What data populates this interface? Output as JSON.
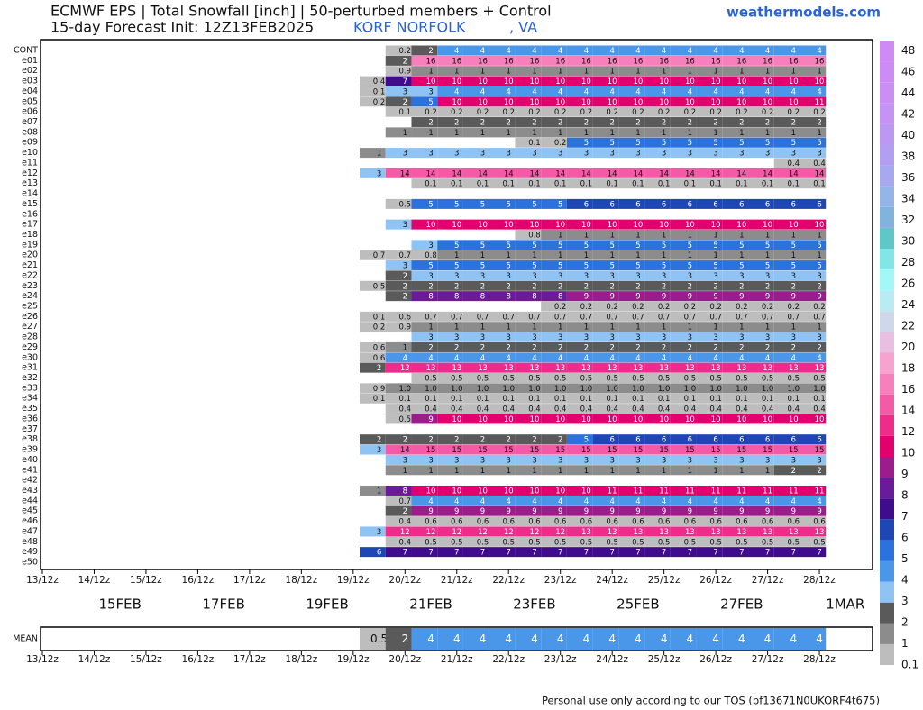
{
  "chart_data": {
    "type": "heatmap",
    "title": "ECMWF EPS | Total Snowfall [inch] | 50-perturbed members + Control",
    "subtitle": "15-day Forecast Init: 12Z13FEB2025",
    "location": "KORF NORFOLK",
    "state": ", VA",
    "site": "weathermodels.com",
    "footer": "Personal use only according to our TOS (pf13671N0UKORF4t675)",
    "xtick_labels": [
      "13/12z",
      "14/12z",
      "15/12z",
      "16/12z",
      "17/12z",
      "18/12z",
      "19/12z",
      "20/12z",
      "21/12z",
      "22/12z",
      "23/12z",
      "24/12z",
      "25/12z",
      "26/12z",
      "27/12z",
      "28/12z"
    ],
    "date_labels": [
      "15FEB",
      "17FEB",
      "19FEB",
      "21FEB",
      "23FEB",
      "25FEB",
      "27FEB",
      "1MAR"
    ],
    "colorbar": {
      "levels": [
        0.1,
        1,
        2,
        3,
        4,
        5,
        6,
        7,
        8,
        9,
        10,
        12,
        14,
        16,
        18,
        20,
        22,
        24,
        26,
        28,
        30,
        32,
        34,
        36,
        38,
        40,
        42,
        44,
        46,
        48
      ],
      "colors": [
        "#bdbdbd",
        "#8c8c8c",
        "#5a5a5a",
        "#8ec3f3",
        "#4a97ea",
        "#2c72dc",
        "#1e46b4",
        "#3f0c8e",
        "#6a1b9a",
        "#9c1c8c",
        "#e2006e",
        "#ee2d8a",
        "#f45aa5",
        "#f77fbb",
        "#f6a3cf",
        "#e8bfe1",
        "#cfd7ea",
        "#b9ecf2",
        "#a3f7f7",
        "#82e6e6",
        "#5fc7c7",
        "#7fb5dc",
        "#95b5e8",
        "#a7a8ef",
        "#b29ff2",
        "#bc98f2",
        "#c493f3",
        "#c98ff3",
        "#cd8cf3",
        "#d08af3"
      ]
    },
    "rows": [
      {
        "name": "CONT",
        "values": [
          null,
          0.2,
          2,
          4,
          4,
          4,
          4,
          4,
          4,
          4,
          4,
          4,
          4,
          4,
          4,
          4,
          4,
          4
        ]
      },
      {
        "name": "e01",
        "values": [
          null,
          2,
          16,
          16,
          16,
          16,
          16,
          16,
          16,
          16,
          16,
          16,
          16,
          16,
          16,
          16,
          16,
          16
        ]
      },
      {
        "name": "e02",
        "values": [
          null,
          0.9,
          1,
          1,
          1,
          1,
          1,
          1,
          1,
          1,
          1,
          1,
          1,
          1,
          1,
          1,
          1,
          1
        ]
      },
      {
        "name": "e03",
        "values": [
          0.4,
          7,
          10,
          10,
          10,
          10,
          10,
          10,
          10,
          10,
          10,
          10,
          10,
          10,
          10,
          10,
          10,
          10
        ]
      },
      {
        "name": "e04",
        "values": [
          0.1,
          3,
          3,
          4,
          4,
          4,
          4,
          4,
          4,
          4,
          4,
          4,
          4,
          4,
          4,
          4,
          4,
          4
        ]
      },
      {
        "name": "e05",
        "values": [
          0.2,
          2,
          5,
          10,
          10,
          10,
          10,
          10,
          10,
          10,
          10,
          10,
          10,
          10,
          10,
          10,
          10,
          11
        ]
      },
      {
        "name": "e06",
        "values": [
          null,
          0.1,
          0.2,
          0.2,
          0.2,
          0.2,
          0.2,
          0.2,
          0.2,
          0.2,
          0.2,
          0.2,
          0.2,
          0.2,
          0.2,
          0.2,
          0.2,
          0.2
        ]
      },
      {
        "name": "e07",
        "values": [
          null,
          null,
          2,
          2,
          2,
          2,
          2,
          2,
          2,
          2,
          2,
          2,
          2,
          2,
          2,
          2,
          2,
          2
        ]
      },
      {
        "name": "e08",
        "values": [
          null,
          1,
          1,
          1,
          1,
          1,
          1,
          1,
          1,
          1,
          1,
          1,
          1,
          1,
          1,
          1,
          1,
          1
        ]
      },
      {
        "name": "e09",
        "values": [
          null,
          null,
          null,
          null,
          null,
          null,
          0.1,
          0.2,
          5,
          5,
          5,
          5,
          5,
          5,
          5,
          5,
          5,
          5
        ]
      },
      {
        "name": "e10",
        "values": [
          1,
          3,
          3,
          3,
          3,
          3,
          3,
          3,
          3,
          3,
          3,
          3,
          3,
          3,
          3,
          3,
          3,
          3
        ]
      },
      {
        "name": "e11",
        "values": [
          null,
          null,
          null,
          null,
          null,
          null,
          null,
          null,
          null,
          null,
          null,
          null,
          null,
          null,
          null,
          null,
          0.4,
          0.4
        ]
      },
      {
        "name": "e12",
        "values": [
          3,
          14,
          14,
          14,
          14,
          14,
          14,
          14,
          14,
          14,
          14,
          14,
          14,
          14,
          14,
          14,
          14,
          14
        ]
      },
      {
        "name": "e13",
        "values": [
          null,
          null,
          0.1,
          0.1,
          0.1,
          0.1,
          0.1,
          0.1,
          0.1,
          0.1,
          0.1,
          0.1,
          0.1,
          0.1,
          0.1,
          0.1,
          0.1,
          0.1
        ]
      },
      {
        "name": "e14",
        "values": [
          null,
          null,
          null,
          null,
          null,
          null,
          null,
          null,
          null,
          null,
          null,
          null,
          null,
          null,
          null,
          null,
          null,
          null
        ]
      },
      {
        "name": "e15",
        "values": [
          null,
          0.5,
          5,
          5,
          5,
          5,
          5,
          5,
          6,
          6,
          6,
          6,
          6,
          6,
          6,
          6,
          6,
          6
        ]
      },
      {
        "name": "e16",
        "values": [
          null,
          null,
          null,
          null,
          null,
          null,
          null,
          null,
          null,
          null,
          null,
          null,
          null,
          null,
          null,
          null,
          null,
          null
        ]
      },
      {
        "name": "e17",
        "values": [
          null,
          3,
          10,
          10,
          10,
          10,
          10,
          10,
          10,
          10,
          10,
          10,
          10,
          10,
          10,
          10,
          10,
          10
        ]
      },
      {
        "name": "e18",
        "values": [
          null,
          null,
          null,
          null,
          null,
          null,
          0.8,
          1,
          1,
          1,
          1,
          1,
          1,
          1,
          1,
          1,
          1,
          1
        ]
      },
      {
        "name": "e19",
        "values": [
          null,
          null,
          3,
          5,
          5,
          5,
          5,
          5,
          5,
          5,
          5,
          5,
          5,
          5,
          5,
          5,
          5,
          5
        ]
      },
      {
        "name": "e20",
        "values": [
          0.7,
          0.7,
          0.8,
          1,
          1,
          1,
          1,
          1,
          1,
          1,
          1,
          1,
          1,
          1,
          1,
          1,
          1,
          1
        ]
      },
      {
        "name": "e21",
        "values": [
          null,
          3,
          5,
          5,
          5,
          5,
          5,
          5,
          5,
          5,
          5,
          5,
          5,
          5,
          5,
          5,
          5,
          5
        ]
      },
      {
        "name": "e22",
        "values": [
          null,
          2,
          3,
          3,
          3,
          3,
          3,
          3,
          3,
          3,
          3,
          3,
          3,
          3,
          3,
          3,
          3,
          3
        ]
      },
      {
        "name": "e23",
        "values": [
          0.5,
          2,
          2,
          2,
          2,
          2,
          2,
          2,
          2,
          2,
          2,
          2,
          2,
          2,
          2,
          2,
          2,
          2
        ]
      },
      {
        "name": "e24",
        "values": [
          null,
          2,
          8,
          8,
          8,
          8,
          8,
          8,
          9,
          9,
          9,
          9,
          9,
          9,
          9,
          9,
          9,
          9
        ]
      },
      {
        "name": "e25",
        "values": [
          null,
          null,
          null,
          null,
          null,
          null,
          null,
          0.2,
          0.2,
          0.2,
          0.2,
          0.2,
          0.2,
          0.2,
          0.2,
          0.2,
          0.2,
          0.2
        ]
      },
      {
        "name": "e26",
        "values": [
          0.1,
          0.6,
          0.7,
          0.7,
          0.7,
          0.7,
          0.7,
          0.7,
          0.7,
          0.7,
          0.7,
          0.7,
          0.7,
          0.7,
          0.7,
          0.7,
          0.7,
          0.7
        ]
      },
      {
        "name": "e27",
        "values": [
          0.2,
          0.9,
          1,
          1,
          1,
          1,
          1,
          1,
          1,
          1,
          1,
          1,
          1,
          1,
          1,
          1,
          1,
          1
        ]
      },
      {
        "name": "e28",
        "values": [
          null,
          null,
          3,
          3,
          3,
          3,
          3,
          3,
          3,
          3,
          3,
          3,
          3,
          3,
          3,
          3,
          3,
          3
        ]
      },
      {
        "name": "e29",
        "values": [
          0.6,
          1,
          2,
          2,
          2,
          2,
          2,
          2,
          2,
          2,
          2,
          2,
          2,
          2,
          2,
          2,
          2,
          2
        ]
      },
      {
        "name": "e30",
        "values": [
          0.6,
          4,
          4,
          4,
          4,
          4,
          4,
          4,
          4,
          4,
          4,
          4,
          4,
          4,
          4,
          4,
          4,
          4
        ]
      },
      {
        "name": "e31",
        "values": [
          2,
          13,
          13,
          13,
          13,
          13,
          13,
          13,
          13,
          13,
          13,
          13,
          13,
          13,
          13,
          13,
          13,
          13
        ]
      },
      {
        "name": "e32",
        "values": [
          null,
          null,
          0.5,
          0.5,
          0.5,
          0.5,
          0.5,
          0.5,
          0.5,
          0.5,
          0.5,
          0.5,
          0.5,
          0.5,
          0.5,
          0.5,
          0.5,
          0.5
        ]
      },
      {
        "name": "e33",
        "values": [
          0.9,
          1,
          1,
          1,
          1,
          1,
          1,
          1,
          1,
          1,
          1,
          1,
          1,
          1,
          1,
          1,
          1,
          1
        ],
        "value_labels": [
          "0.9",
          "1.0",
          "1.0",
          "1.0",
          "1.0",
          "1.0",
          "1.0",
          "1.0",
          "1.0",
          "1.0",
          "1.0",
          "1.0",
          "1.0",
          "1.0",
          "1.0",
          "1.0",
          "1.0",
          "1.0"
        ]
      },
      {
        "name": "e34",
        "values": [
          0.1,
          0.1,
          0.1,
          0.1,
          0.1,
          0.1,
          0.1,
          0.1,
          0.1,
          0.1,
          0.1,
          0.1,
          0.1,
          0.1,
          0.1,
          0.1,
          0.1,
          0.1
        ]
      },
      {
        "name": "e35",
        "values": [
          null,
          0.4,
          0.4,
          0.4,
          0.4,
          0.4,
          0.4,
          0.4,
          0.4,
          0.4,
          0.4,
          0.4,
          0.4,
          0.4,
          0.4,
          0.4,
          0.4,
          0.4
        ]
      },
      {
        "name": "e36",
        "values": [
          null,
          0.5,
          9,
          10,
          10,
          10,
          10,
          10,
          10,
          10,
          10,
          10,
          10,
          10,
          10,
          10,
          10,
          10
        ]
      },
      {
        "name": "e37",
        "values": [
          null,
          null,
          null,
          null,
          null,
          null,
          null,
          null,
          null,
          null,
          null,
          null,
          null,
          null,
          null,
          null,
          null,
          null
        ]
      },
      {
        "name": "e38",
        "values": [
          2,
          2,
          2,
          2,
          2,
          2,
          2,
          2,
          5,
          6,
          6,
          6,
          6,
          6,
          6,
          6,
          6,
          6
        ]
      },
      {
        "name": "e39",
        "values": [
          3,
          14,
          15,
          15,
          15,
          15,
          15,
          15,
          15,
          15,
          15,
          15,
          15,
          15,
          15,
          15,
          15,
          15
        ]
      },
      {
        "name": "e40",
        "values": [
          null,
          3,
          3,
          3,
          3,
          3,
          3,
          3,
          3,
          3,
          3,
          3,
          3,
          3,
          3,
          3,
          3,
          3
        ]
      },
      {
        "name": "e41",
        "values": [
          null,
          1,
          1,
          1,
          1,
          1,
          1,
          1,
          1,
          1,
          1,
          1,
          1,
          1,
          1,
          1,
          2,
          2
        ]
      },
      {
        "name": "e42",
        "values": [
          null,
          null,
          null,
          null,
          null,
          null,
          null,
          null,
          null,
          null,
          null,
          null,
          null,
          null,
          null,
          null,
          null,
          null
        ]
      },
      {
        "name": "e43",
        "values": [
          1,
          8,
          10,
          10,
          10,
          10,
          10,
          10,
          10,
          11,
          11,
          11,
          11,
          11,
          11,
          11,
          11,
          11
        ]
      },
      {
        "name": "e44",
        "values": [
          null,
          0.7,
          4,
          4,
          4,
          4,
          4,
          4,
          4,
          4,
          4,
          4,
          4,
          4,
          4,
          4,
          4,
          4
        ]
      },
      {
        "name": "e45",
        "values": [
          null,
          2,
          9,
          9,
          9,
          9,
          9,
          9,
          9,
          9,
          9,
          9,
          9,
          9,
          9,
          9,
          9,
          9
        ]
      },
      {
        "name": "e46",
        "values": [
          null,
          0.4,
          0.6,
          0.6,
          0.6,
          0.6,
          0.6,
          0.6,
          0.6,
          0.6,
          0.6,
          0.6,
          0.6,
          0.6,
          0.6,
          0.6,
          0.6,
          0.6
        ]
      },
      {
        "name": "e47",
        "values": [
          3,
          12,
          12,
          12,
          12,
          12,
          12,
          12,
          13,
          13,
          13,
          13,
          13,
          13,
          13,
          13,
          13,
          13
        ]
      },
      {
        "name": "e48",
        "values": [
          null,
          0.4,
          0.5,
          0.5,
          0.5,
          0.5,
          0.5,
          0.5,
          0.5,
          0.5,
          0.5,
          0.5,
          0.5,
          0.5,
          0.5,
          0.5,
          0.5,
          0.5
        ]
      },
      {
        "name": "e49",
        "values": [
          6,
          7,
          7,
          7,
          7,
          7,
          7,
          7,
          7,
          7,
          7,
          7,
          7,
          7,
          7,
          7,
          7,
          7
        ]
      },
      {
        "name": "e50",
        "values": [
          null,
          null,
          null,
          null,
          null,
          null,
          null,
          null,
          null,
          null,
          null,
          null,
          null,
          null,
          null,
          null,
          null,
          null
        ]
      }
    ],
    "mean": {
      "name": "MEAN",
      "values": [
        0.5,
        2,
        4,
        4,
        4,
        4,
        4,
        4,
        4,
        4,
        4,
        4,
        4,
        4,
        4,
        4,
        4,
        4
      ]
    }
  }
}
